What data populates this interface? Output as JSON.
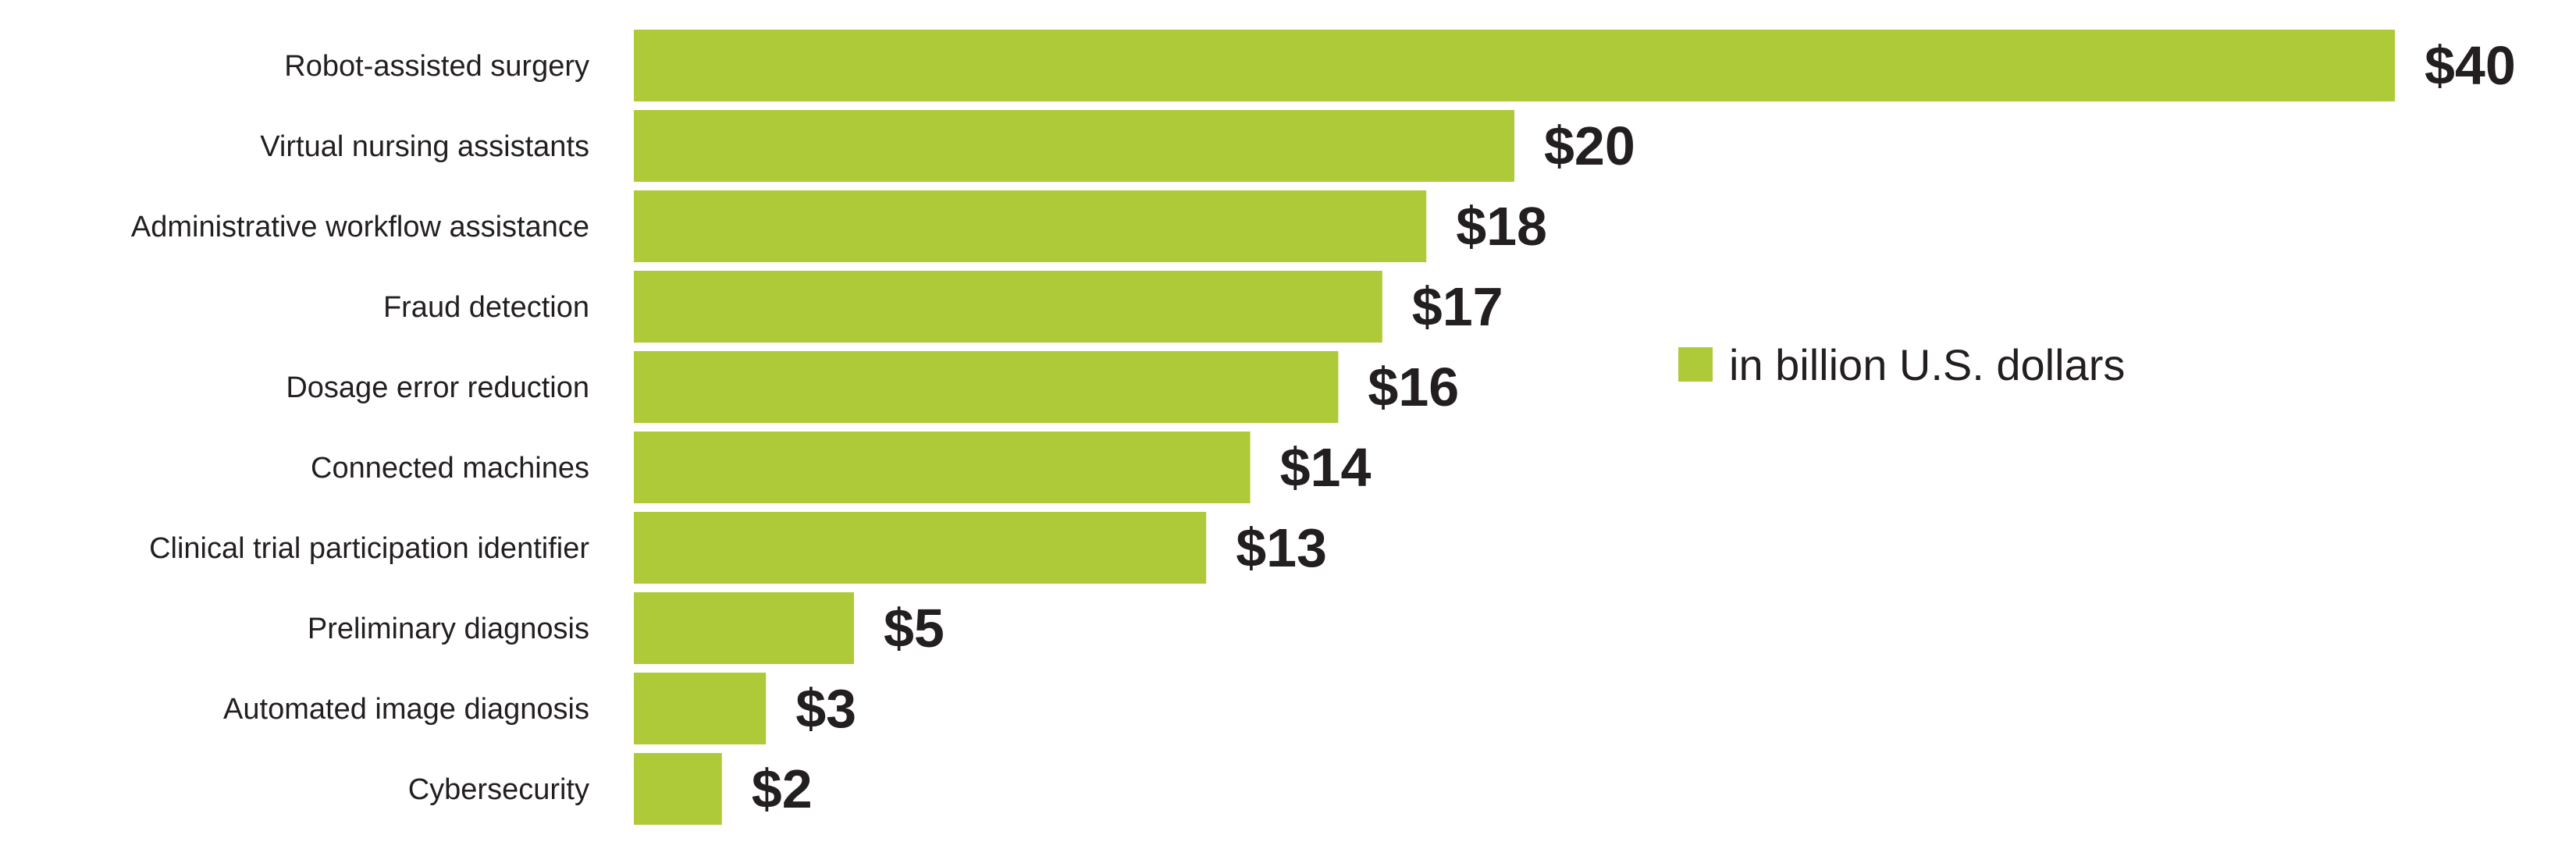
{
  "chart_data": {
    "type": "bar",
    "orientation": "horizontal",
    "categories": [
      "Robot-assisted surgery",
      "Virtual nursing assistants",
      "Administrative workflow assistance",
      "Fraud detection",
      "Dosage error reduction",
      "Connected machines",
      "Clinical trial participation identifier",
      "Preliminary diagnosis",
      "Automated image diagnosis",
      "Cybersecurity"
    ],
    "series": [
      {
        "name": "in billion U.S. dollars",
        "values": [
          40,
          20,
          18,
          17,
          16,
          14,
          13,
          5,
          3,
          2
        ],
        "value_labels": [
          "$40",
          "$20",
          "$18",
          "$17",
          "$16",
          "$14",
          "$13",
          "$5",
          "$3",
          "$2"
        ],
        "color": "#afca38"
      }
    ],
    "xlim": [
      0,
      40
    ],
    "grid": false,
    "legend_position": "right"
  }
}
